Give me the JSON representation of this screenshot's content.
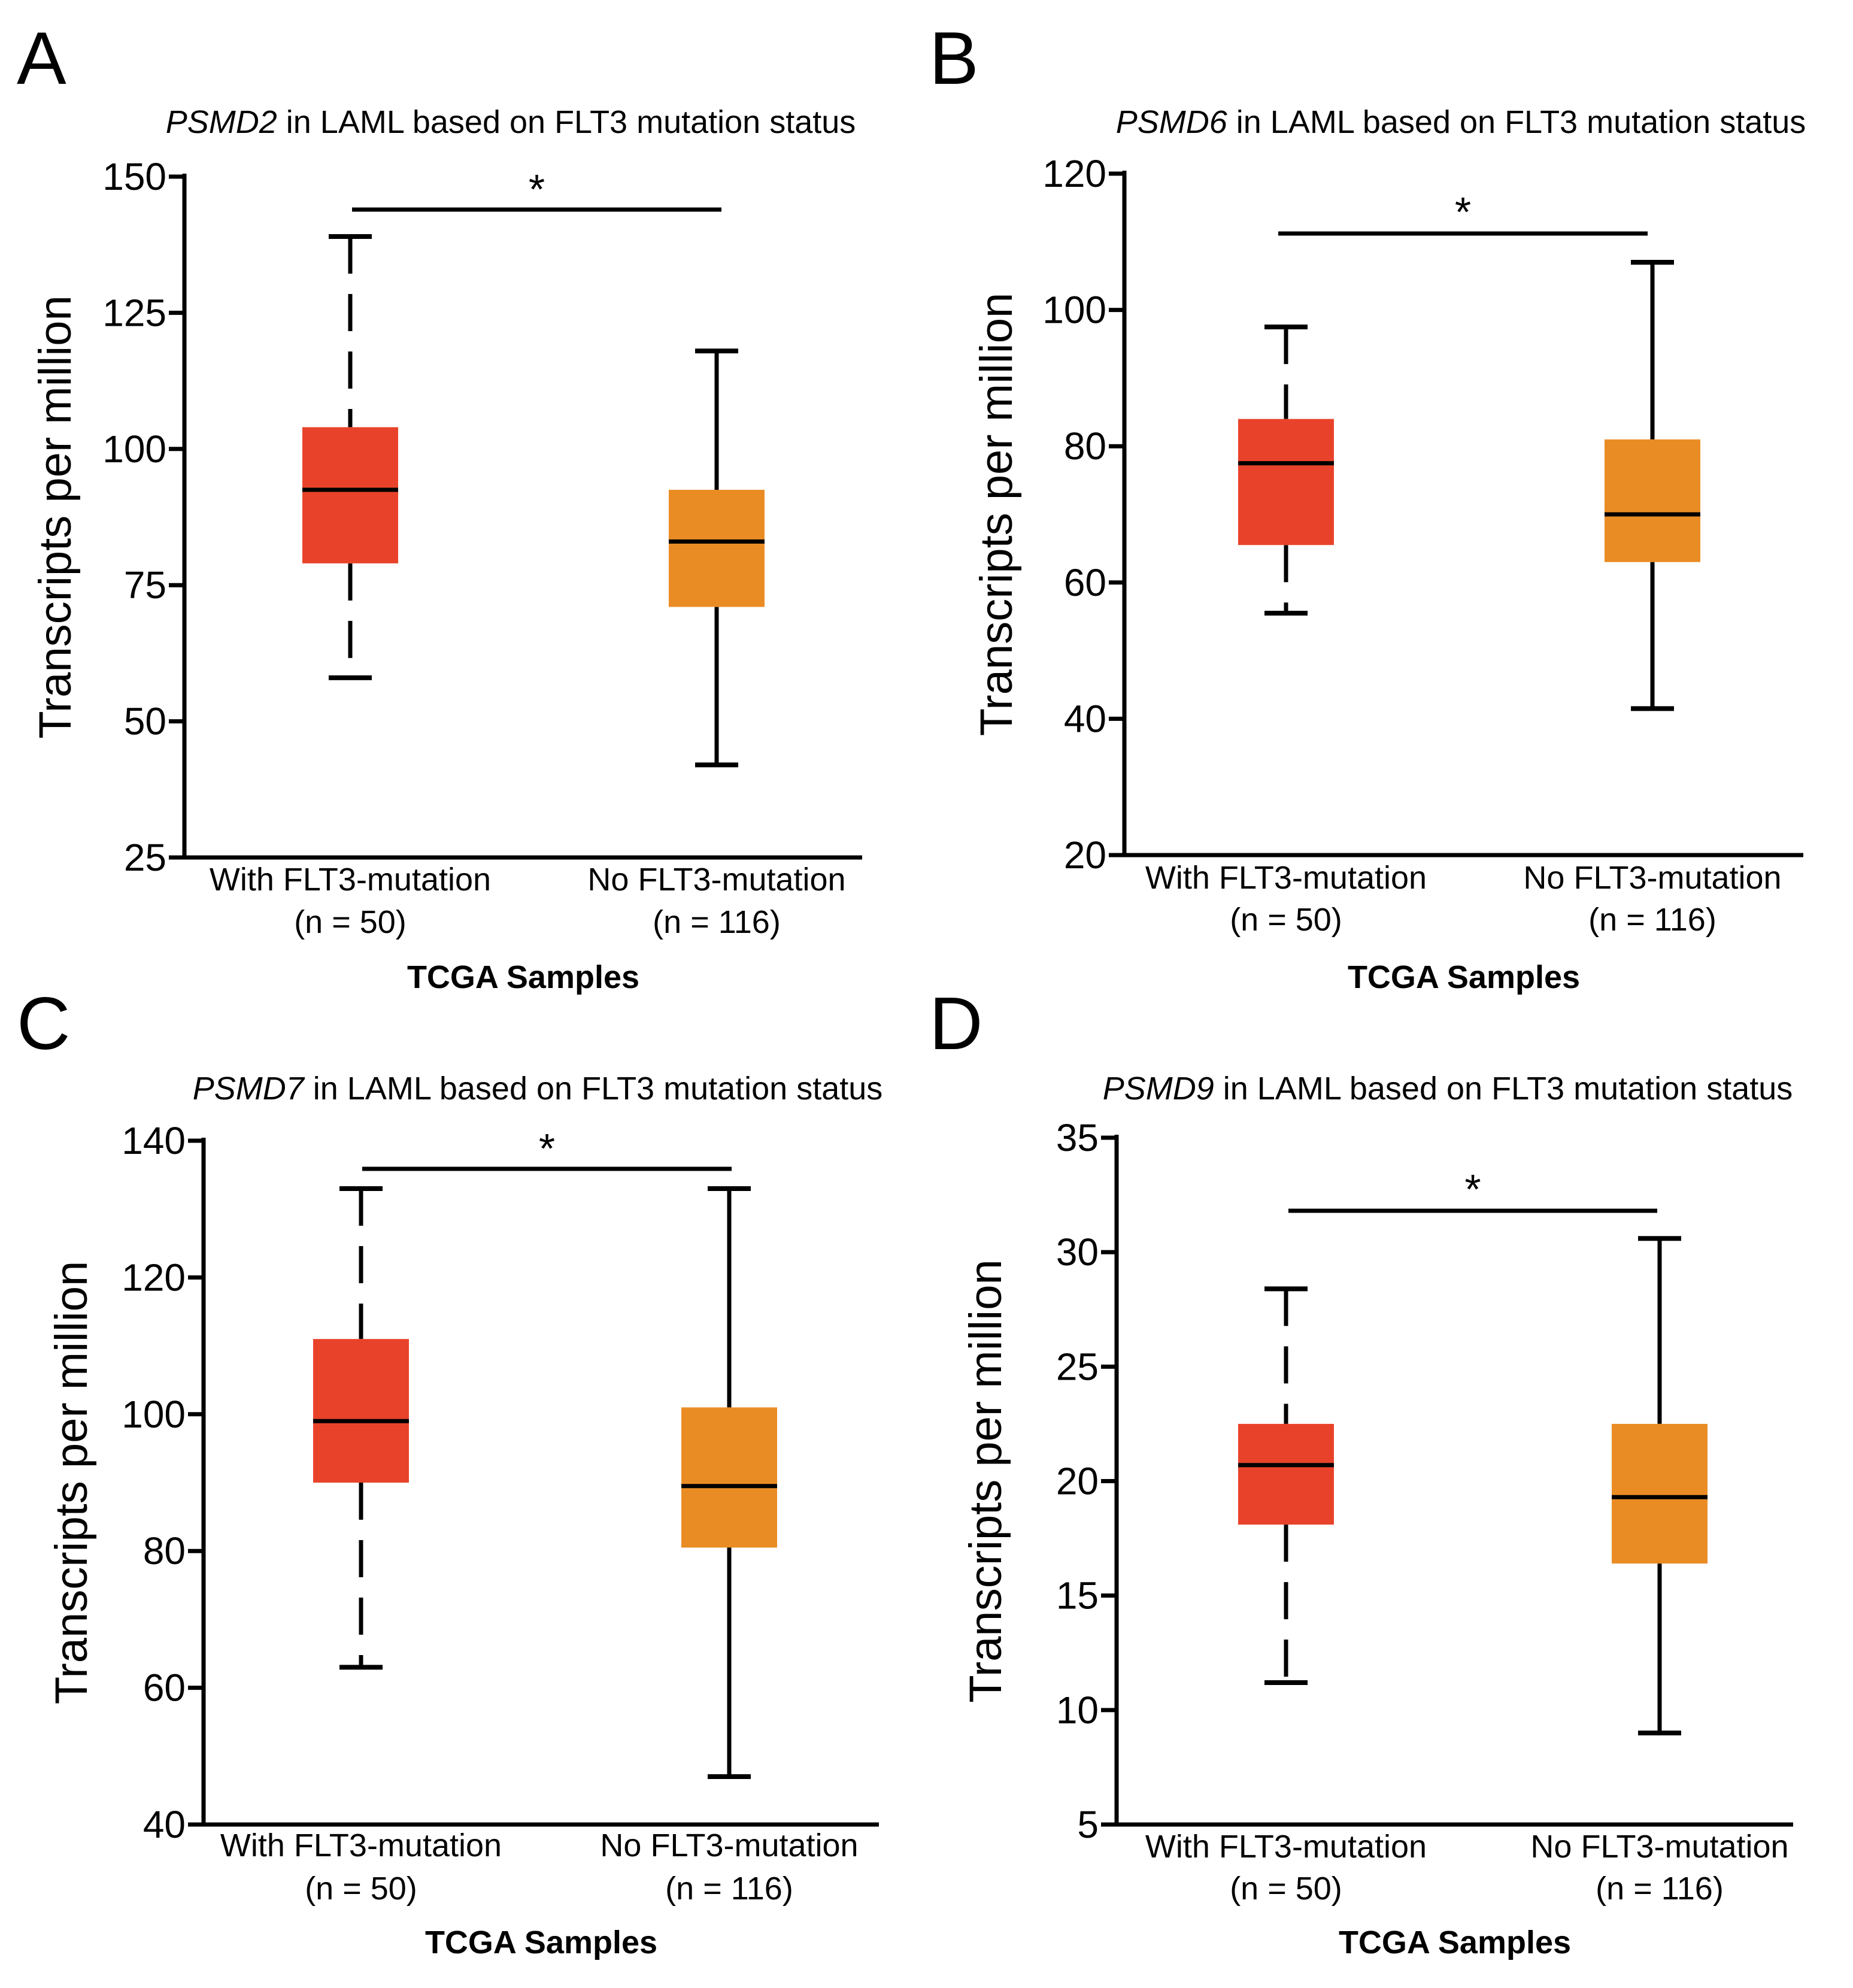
{
  "chart_data": [
    {
      "panel": "A",
      "type": "box",
      "title_gene": "PSMD2",
      "title_rest": " in LAML based on FLT3 mutation status",
      "ylabel": "Transcripts per million",
      "xlabel": "TCGA Samples",
      "ylim": [
        25,
        150
      ],
      "yticks": [
        25,
        50,
        75,
        100,
        125,
        150
      ],
      "significance": "*",
      "groups": [
        {
          "label": "With FLT3-mutation",
          "n_label": "(n = 50)",
          "color": "#e8432a",
          "min": 58,
          "q1": 79,
          "median": 92.5,
          "q3": 104,
          "max": 139
        },
        {
          "label": "No FLT3-mutation",
          "n_label": "(n = 116)",
          "color": "#ea8c24",
          "min": 42,
          "q1": 71,
          "median": 83,
          "q3": 92.5,
          "max": 118
        }
      ]
    },
    {
      "panel": "B",
      "type": "box",
      "title_gene": "PSMD6",
      "title_rest": " in LAML based on FLT3 mutation status",
      "ylabel": "Transcripts per million",
      "xlabel": "TCGA Samples",
      "ylim": [
        20,
        120
      ],
      "yticks": [
        20,
        40,
        60,
        80,
        100,
        120
      ],
      "significance": "*",
      "groups": [
        {
          "label": "With FLT3-mutation",
          "n_label": "(n = 50)",
          "color": "#e8432a",
          "min": 55.5,
          "q1": 65.5,
          "median": 77.5,
          "q3": 84,
          "max": 97.5
        },
        {
          "label": "No FLT3-mutation",
          "n_label": "(n = 116)",
          "color": "#ea8c24",
          "min": 41.5,
          "q1": 63,
          "median": 70,
          "q3": 81,
          "max": 107
        }
      ]
    },
    {
      "panel": "C",
      "type": "box",
      "title_gene": "PSMD7",
      "title_rest": " in LAML based on FLT3 mutation status",
      "ylabel": "Transcripts per million",
      "xlabel": "TCGA Samples",
      "ylim": [
        40,
        140
      ],
      "yticks": [
        40,
        60,
        80,
        100,
        120,
        140
      ],
      "significance": "*",
      "groups": [
        {
          "label": "With FLT3-mutation",
          "n_label": "(n = 50)",
          "color": "#e8432a",
          "min": 63,
          "q1": 90,
          "median": 99,
          "q3": 111,
          "max": 133
        },
        {
          "label": "No FLT3-mutation",
          "n_label": "(n = 116)",
          "color": "#ea8c24",
          "min": 47,
          "q1": 80.5,
          "median": 89.5,
          "q3": 101,
          "max": 133
        }
      ]
    },
    {
      "panel": "D",
      "type": "box",
      "title_gene": "PSMD9",
      "title_rest": " in LAML based on FLT3 mutation status",
      "ylabel": "Transcripts per million",
      "xlabel": "TCGA Samples",
      "ylim": [
        5,
        35
      ],
      "yticks": [
        5,
        10,
        15,
        20,
        25,
        30,
        35
      ],
      "significance": "*",
      "groups": [
        {
          "label": "With FLT3-mutation",
          "n_label": "(n = 50)",
          "color": "#e8432a",
          "min": 11.2,
          "q1": 18.1,
          "median": 20.7,
          "q3": 22.5,
          "max": 28.4
        },
        {
          "label": "No FLT3-mutation",
          "n_label": "(n = 116)",
          "color": "#ea8c24",
          "min": 9,
          "q1": 16.4,
          "median": 19.3,
          "q3": 22.5,
          "max": 30.6
        }
      ]
    }
  ]
}
